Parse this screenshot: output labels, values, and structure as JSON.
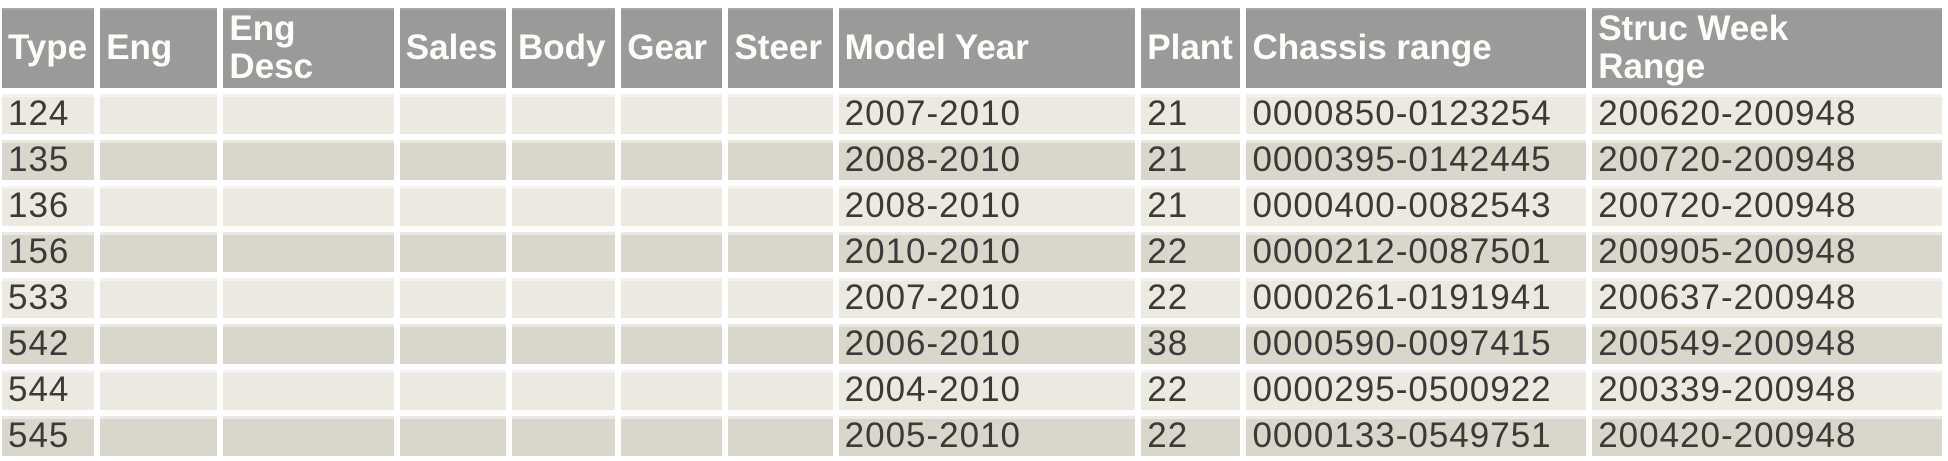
{
  "table": {
    "name": "vehicle-profile-table",
    "columns": [
      {
        "key": "type",
        "label": "Type"
      },
      {
        "key": "eng",
        "label": "Eng"
      },
      {
        "key": "eng-desc",
        "label": "Eng\nDesc"
      },
      {
        "key": "sales",
        "label": "Sales"
      },
      {
        "key": "body",
        "label": "Body"
      },
      {
        "key": "gear",
        "label": "Gear"
      },
      {
        "key": "steer",
        "label": "Steer"
      },
      {
        "key": "model-year",
        "label": "Model Year"
      },
      {
        "key": "plant",
        "label": "Plant"
      },
      {
        "key": "chassis-range",
        "label": "Chassis range"
      },
      {
        "key": "struc-week-range",
        "label": "Struc Week\nRange"
      }
    ],
    "rows": [
      [
        "124",
        "",
        "",
        "",
        "",
        "",
        "",
        "2007-2010",
        "21",
        "0000850-0123254",
        "200620-200948"
      ],
      [
        "135",
        "",
        "",
        "",
        "",
        "",
        "",
        "2008-2010",
        "21",
        "0000395-0142445",
        "200720-200948"
      ],
      [
        "136",
        "",
        "",
        "",
        "",
        "",
        "",
        "2008-2010",
        "21",
        "0000400-0082543",
        "200720-200948"
      ],
      [
        "156",
        "",
        "",
        "",
        "",
        "",
        "",
        "2010-2010",
        "22",
        "0000212-0087501",
        "200905-200948"
      ],
      [
        "533",
        "",
        "",
        "",
        "",
        "",
        "",
        "2007-2010",
        "22",
        "0000261-0191941",
        "200637-200948"
      ],
      [
        "542",
        "",
        "",
        "",
        "",
        "",
        "",
        "2006-2010",
        "38",
        "0000590-0097415",
        "200549-200948"
      ],
      [
        "544",
        "",
        "",
        "",
        "",
        "",
        "",
        "2004-2010",
        "22",
        "0000295-0500922",
        "200339-200948"
      ],
      [
        "545",
        "",
        "",
        "",
        "",
        "",
        "",
        "2005-2010",
        "22",
        "0000133-0549751",
        "200420-200948"
      ]
    ]
  },
  "colors": {
    "header_bg": "#9a9a9a",
    "header_text": "#fdfdfa",
    "row_light": "#ece9e2",
    "row_dark": "#d9d6cc",
    "grid": "#ffffff",
    "cell_text": "#3b3a37"
  }
}
